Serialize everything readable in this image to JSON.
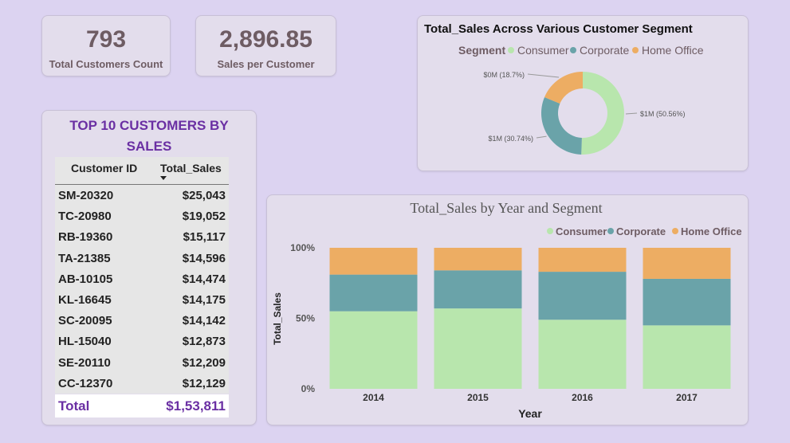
{
  "kpis": [
    {
      "value": "793",
      "label": "Total Customers Count"
    },
    {
      "value": "2,896.85",
      "label": "Sales per Customer"
    }
  ],
  "top_customers": {
    "title_line1": "TOP 10 CUSTOMERS BY",
    "title_line2": "SALES",
    "col_id": "Customer ID",
    "col_sales": "Total_Sales",
    "rows": [
      {
        "id": "SM-20320",
        "sales": "$25,043"
      },
      {
        "id": "TC-20980",
        "sales": "$19,052"
      },
      {
        "id": "RB-19360",
        "sales": "$15,117"
      },
      {
        "id": "TA-21385",
        "sales": "$14,596"
      },
      {
        "id": "AB-10105",
        "sales": "$14,474"
      },
      {
        "id": "KL-16645",
        "sales": "$14,175"
      },
      {
        "id": "SC-20095",
        "sales": "$14,142"
      },
      {
        "id": "HL-15040",
        "sales": "$12,873"
      },
      {
        "id": "SE-20110",
        "sales": "$12,209"
      },
      {
        "id": "CC-12370",
        "sales": "$12,129"
      }
    ],
    "total_label": "Total",
    "total_value": "$1,53,811"
  },
  "colors": {
    "consumer": "#b8e6ad",
    "corporate": "#6aa3a9",
    "home_office": "#edad63",
    "title_purple": "#6a2fa3"
  },
  "chart_data": [
    {
      "type": "pie",
      "title": "Total_Sales Across Various Customer Segment",
      "legend_title": "Segment",
      "legend_position": "top",
      "slices": [
        {
          "name": "Consumer",
          "value": 50.56,
          "label": "$1M (50.56%)"
        },
        {
          "name": "Corporate",
          "value": 30.74,
          "label": "$1M (30.74%)"
        },
        {
          "name": "Home Office",
          "value": 18.7,
          "label": "$0M (18.7%)"
        }
      ]
    },
    {
      "type": "bar",
      "stacked": "100%",
      "title": "Total_Sales by Year and Segment",
      "xlabel": "Year",
      "ylabel": "Total_Sales",
      "ylim": [
        0,
        100
      ],
      "yticks": [
        "0%",
        "50%",
        "100%"
      ],
      "legend_position": "top-right",
      "categories": [
        "2014",
        "2015",
        "2016",
        "2017"
      ],
      "series": [
        {
          "name": "Consumer",
          "values": [
            55,
            57,
            49,
            45
          ]
        },
        {
          "name": "Corporate",
          "values": [
            26,
            27,
            34,
            33
          ]
        },
        {
          "name": "Home Office",
          "values": [
            19,
            16,
            17,
            22
          ]
        }
      ]
    }
  ]
}
